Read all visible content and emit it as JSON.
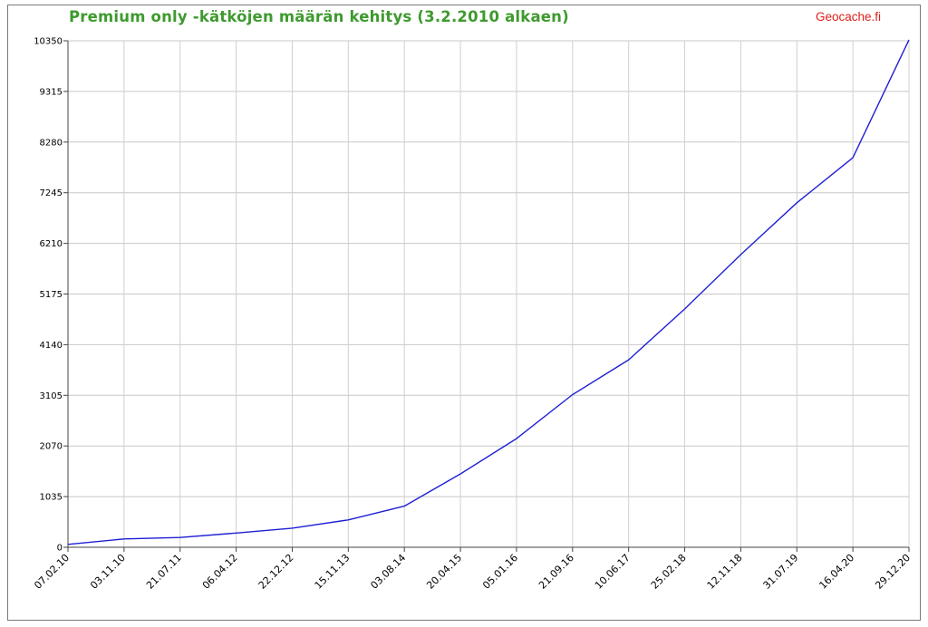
{
  "chart_data": {
    "type": "line",
    "title": "Premium only -kätköjen määrän kehitys (3.2.2010 alkaen)",
    "brand": "Geocache.fi",
    "ylim": [
      0,
      10350
    ],
    "yticks": [
      "0",
      "1035",
      "2070",
      "3105",
      "4140",
      "5175",
      "6210",
      "7245",
      "8280",
      "9315",
      "10350"
    ],
    "yticks_values": [
      0,
      1035,
      2070,
      3105,
      4140,
      5175,
      6210,
      7245,
      8280,
      9315,
      10350
    ],
    "xticks": [
      "07.02.10",
      "03.11.10",
      "21.07.11",
      "06.04.12",
      "22.12.12",
      "15.11.13",
      "03.08.14",
      "20.04.15",
      "05.01.16",
      "21.09.16",
      "10.06.17",
      "25.02.18",
      "12.11.18",
      "31.07.19",
      "16.04.20",
      "29.12.20"
    ],
    "grid": true,
    "legend": "none",
    "series": [
      {
        "color": "#1f1fd4",
        "x": [
          "07.02.10",
          "03.11.10",
          "21.07.11",
          "06.04.12",
          "22.12.12",
          "15.11.13",
          "03.08.14",
          "20.04.15",
          "05.01.16",
          "21.09.16",
          "10.06.17",
          "25.02.18",
          "12.11.18",
          "31.07.19",
          "16.04.20",
          "29.12.20"
        ],
        "values": [
          60,
          170,
          200,
          290,
          390,
          560,
          840,
          1500,
          2220,
          3120,
          3830,
          4870,
          5980,
          7040,
          7960,
          10370
        ]
      }
    ]
  }
}
